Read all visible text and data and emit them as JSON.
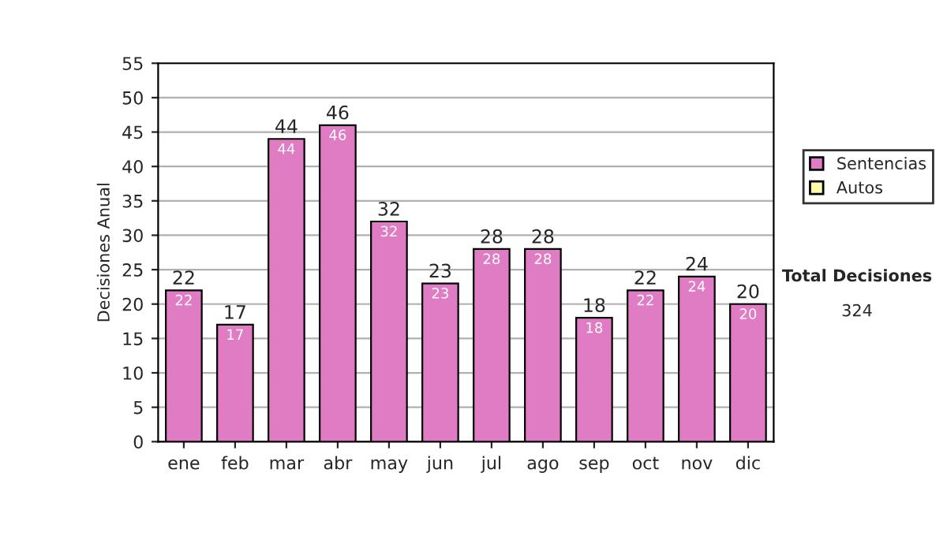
{
  "chart_data": {
    "type": "bar",
    "ylabel": "Decisiones Anual",
    "categories": [
      "ene",
      "feb",
      "mar",
      "abr",
      "may",
      "jun",
      "jul",
      "ago",
      "sep",
      "oct",
      "nov",
      "dic"
    ],
    "series": [
      {
        "name": "Sentencias",
        "color": "#e07cc4",
        "values": [
          22,
          17,
          44,
          46,
          32,
          23,
          28,
          28,
          18,
          22,
          24,
          20
        ]
      },
      {
        "name": "Autos",
        "color": "#ffffaa",
        "values": [
          null,
          null,
          null,
          null,
          null,
          null,
          null,
          null,
          null,
          null,
          null,
          null
        ]
      }
    ],
    "data_labels": true,
    "totals": [
      "22",
      "17",
      "44",
      "46",
      "32",
      "23",
      "28",
      "28",
      "18",
      "22",
      "24",
      "20"
    ],
    "ylim": [
      0,
      55
    ],
    "yticks": [
      0,
      5,
      10,
      15,
      20,
      25,
      30,
      35,
      40,
      45,
      50,
      55
    ],
    "grid": "y",
    "legend": "right",
    "annotations": [
      "Total Decisiones",
      "324"
    ]
  }
}
